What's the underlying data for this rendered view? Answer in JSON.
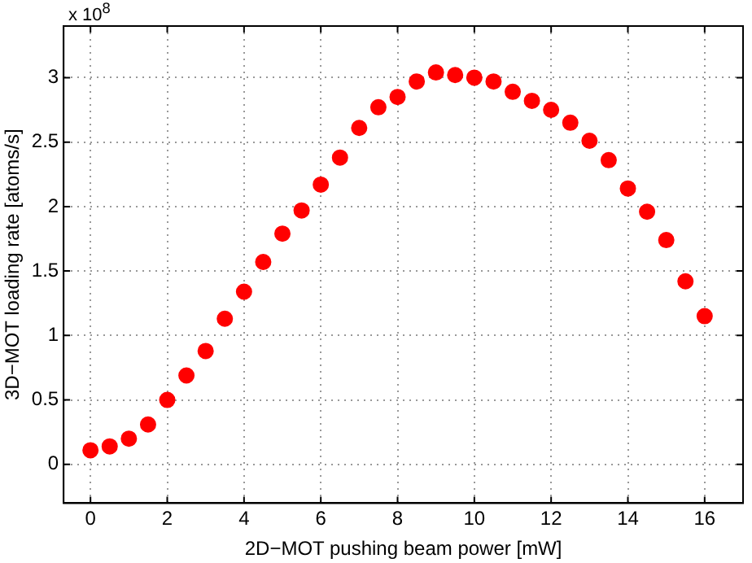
{
  "chart_data": {
    "type": "scatter",
    "xlabel": "2D−MOT pushing beam power [mW]",
    "ylabel": "3D−MOT loading rate [atoms/s]",
    "annotations": [
      "x 10$^{8}$"
    ],
    "x": [
      0,
      0.5,
      1,
      1.5,
      2,
      2.5,
      3,
      3.5,
      4,
      4.5,
      5,
      5.5,
      6,
      6.5,
      7,
      7.5,
      8,
      8.5,
      9,
      9.5,
      10,
      10.5,
      11,
      11.5,
      12,
      12.5,
      13,
      13.5,
      14,
      14.5,
      15,
      15.5,
      16
    ],
    "series": [
      {
        "color": "#ff0000",
        "values": [
          0.11,
          0.14,
          0.2,
          0.31,
          0.5,
          0.69,
          0.88,
          1.13,
          1.34,
          1.57,
          1.79,
          1.97,
          2.17,
          2.38,
          2.61,
          2.77,
          2.85,
          2.97,
          3.04,
          3.02,
          3.0,
          2.97,
          2.89,
          2.82,
          2.75,
          2.65,
          2.51,
          2.36,
          2.14,
          1.96,
          1.74,
          1.42,
          1.15
        ]
      }
    ],
    "xlim": [
      -0.7,
      17
    ],
    "ylim": [
      -0.3,
      3.4
    ],
    "xticks": [
      0,
      2,
      4,
      6,
      8,
      10,
      12,
      14,
      16
    ],
    "yticks": [
      0,
      0.5,
      1,
      1.5,
      2,
      2.5,
      3
    ],
    "grid": true,
    "legend": false,
    "marker": "circle"
  }
}
